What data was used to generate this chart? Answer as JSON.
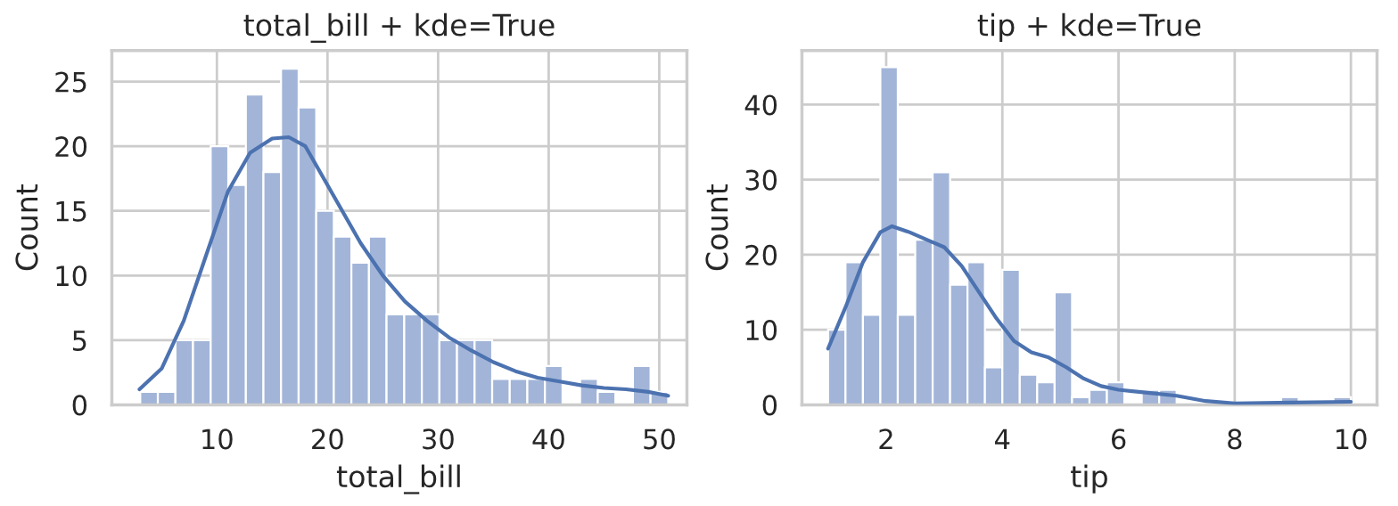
{
  "chart_data": [
    {
      "type": "histogram",
      "title": "total_bill + kde=True",
      "xlabel": "total_bill",
      "ylabel": "Count",
      "bins": [
        3.07,
        4.66,
        6.25,
        7.84,
        9.44,
        11.03,
        12.62,
        14.21,
        15.8,
        17.39,
        18.98,
        20.57,
        22.16,
        23.75,
        25.34,
        26.94,
        28.53,
        30.12,
        31.71,
        33.3,
        34.89,
        36.48,
        38.07,
        39.66,
        41.25,
        42.84,
        44.44,
        46.03,
        47.62,
        49.21,
        50.81
      ],
      "values": [
        1,
        1,
        5,
        5,
        20,
        17,
        24,
        18,
        26,
        23,
        15,
        13,
        11,
        13,
        7,
        7,
        7,
        5,
        5,
        5,
        2,
        2,
        2,
        3,
        0,
        2,
        1,
        0,
        3,
        1
      ],
      "color": "#a2b5d8",
      "series": [
        {
          "type": "line",
          "color": "#4c72b0",
          "x": [
            3,
            5,
            7,
            9,
            11,
            13,
            15,
            16.5,
            18,
            19,
            21,
            23,
            25,
            27,
            29,
            31,
            33,
            35,
            37,
            39,
            41,
            43,
            45,
            47,
            49,
            50.8
          ],
          "values": [
            1.2,
            2.8,
            6.5,
            11.5,
            16.5,
            19.5,
            20.6,
            20.7,
            20,
            18.5,
            15.5,
            12.5,
            10,
            8,
            6.5,
            5.2,
            4.2,
            3.3,
            2.6,
            2.1,
            1.8,
            1.5,
            1.3,
            1.2,
            1,
            0.7
          ]
        }
      ],
      "xlim": [
        0.5,
        52.5
      ],
      "ylim": [
        0,
        27.4
      ],
      "xticks": [
        10,
        20,
        30,
        40,
        50
      ],
      "yticks": [
        0,
        5,
        10,
        15,
        20,
        25
      ],
      "grid": true
    },
    {
      "type": "histogram",
      "title": "tip + kde=True",
      "xlabel": "tip",
      "ylabel": "Count",
      "bins": [
        1.0,
        1.3,
        1.6,
        1.9,
        2.2,
        2.5,
        2.8,
        3.1,
        3.4,
        3.7,
        4.0,
        4.3,
        4.6,
        4.9,
        5.2,
        5.5,
        5.8,
        6.1,
        6.4,
        6.7,
        7.0,
        7.3,
        7.6,
        7.9,
        8.2,
        8.5,
        8.8,
        9.1,
        9.4,
        9.7,
        10.0
      ],
      "values": [
        10,
        19,
        12,
        45,
        12,
        22,
        31,
        16,
        19,
        5,
        18,
        4,
        3,
        15,
        1,
        2,
        3,
        0,
        2,
        2,
        0,
        0,
        0,
        0,
        0,
        0,
        1,
        0,
        0,
        1
      ],
      "color": "#a2b5d8",
      "series": [
        {
          "type": "line",
          "color": "#4c72b0",
          "x": [
            1.0,
            1.3,
            1.6,
            1.9,
            2.1,
            2.4,
            2.7,
            3.0,
            3.3,
            3.6,
            3.9,
            4.2,
            4.5,
            4.8,
            5.1,
            5.4,
            5.7,
            6.0,
            6.5,
            7.0,
            7.5,
            8.0,
            9.0,
            10.0
          ],
          "values": [
            7.5,
            13,
            19,
            23,
            23.8,
            23,
            22,
            21,
            18.5,
            15,
            11.5,
            8.5,
            7,
            6.3,
            5,
            3.5,
            2.5,
            2,
            1.6,
            1.2,
            0.5,
            0.2,
            0.3,
            0.4
          ]
        }
      ],
      "xlim": [
        0.55,
        10.45
      ],
      "ylim": [
        0,
        47.2
      ],
      "xticks": [
        2,
        4,
        6,
        8,
        10
      ],
      "yticks": [
        0,
        10,
        20,
        30,
        40
      ],
      "grid": true
    }
  ]
}
